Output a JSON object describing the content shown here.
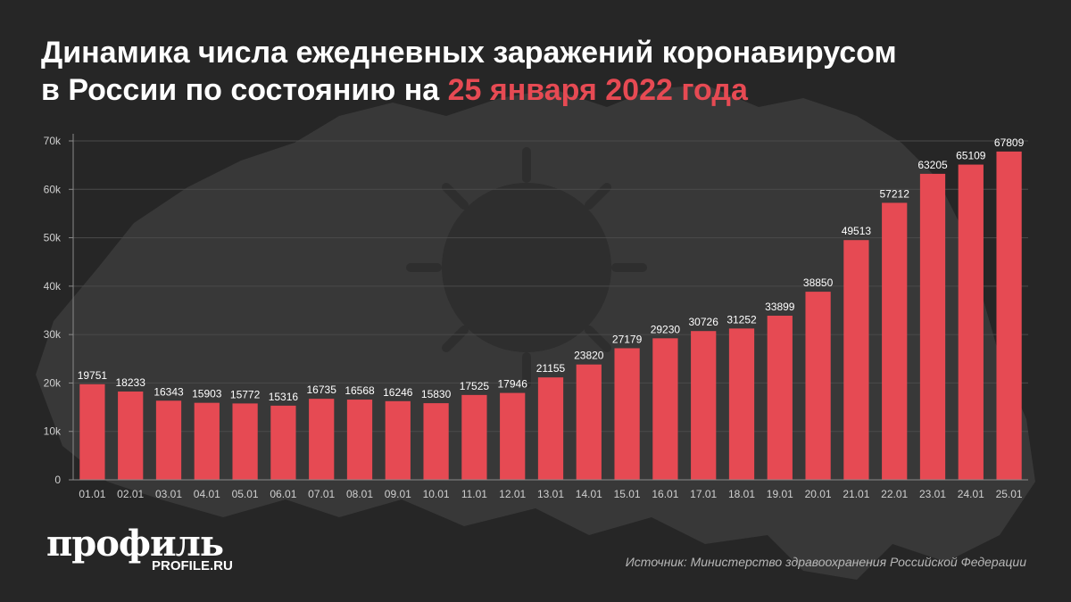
{
  "title": {
    "line1": "Динамика числа ежедневных заражений коронавирусом",
    "line2_prefix": "в России по состоянию на ",
    "line2_accent": "25 января 2022 года"
  },
  "logo": {
    "main": "профиль",
    "sub": "PROFILE.RU"
  },
  "source": "Источник: Министерство здравоохранения Российской Федерации",
  "colors": {
    "bar": "#e64a53",
    "accent": "#e64a53",
    "background": "#262626"
  },
  "chart_data": {
    "type": "bar",
    "categories": [
      "01.01",
      "02.01",
      "03.01",
      "04.01",
      "05.01",
      "06.01",
      "07.01",
      "08.01",
      "09.01",
      "10.01",
      "11.01",
      "12.01",
      "13.01",
      "14.01",
      "15.01",
      "16.01",
      "17.01",
      "18.01",
      "19.01",
      "20.01",
      "21.01",
      "22.01",
      "23.01",
      "24.01",
      "25.01"
    ],
    "values": [
      19751,
      18233,
      16343,
      15903,
      15772,
      15316,
      16735,
      16568,
      16246,
      15830,
      17525,
      17946,
      21155,
      23820,
      27179,
      29230,
      30726,
      31252,
      33899,
      38850,
      49513,
      57212,
      63205,
      65109,
      67809
    ],
    "ylim": [
      0,
      70000
    ],
    "yticks": [
      0,
      10000,
      20000,
      30000,
      40000,
      50000,
      60000,
      70000
    ],
    "ytick_labels": [
      "0",
      "10k",
      "20k",
      "30k",
      "40k",
      "50k",
      "60k",
      "70k"
    ],
    "grid": true,
    "data_labels": true
  }
}
